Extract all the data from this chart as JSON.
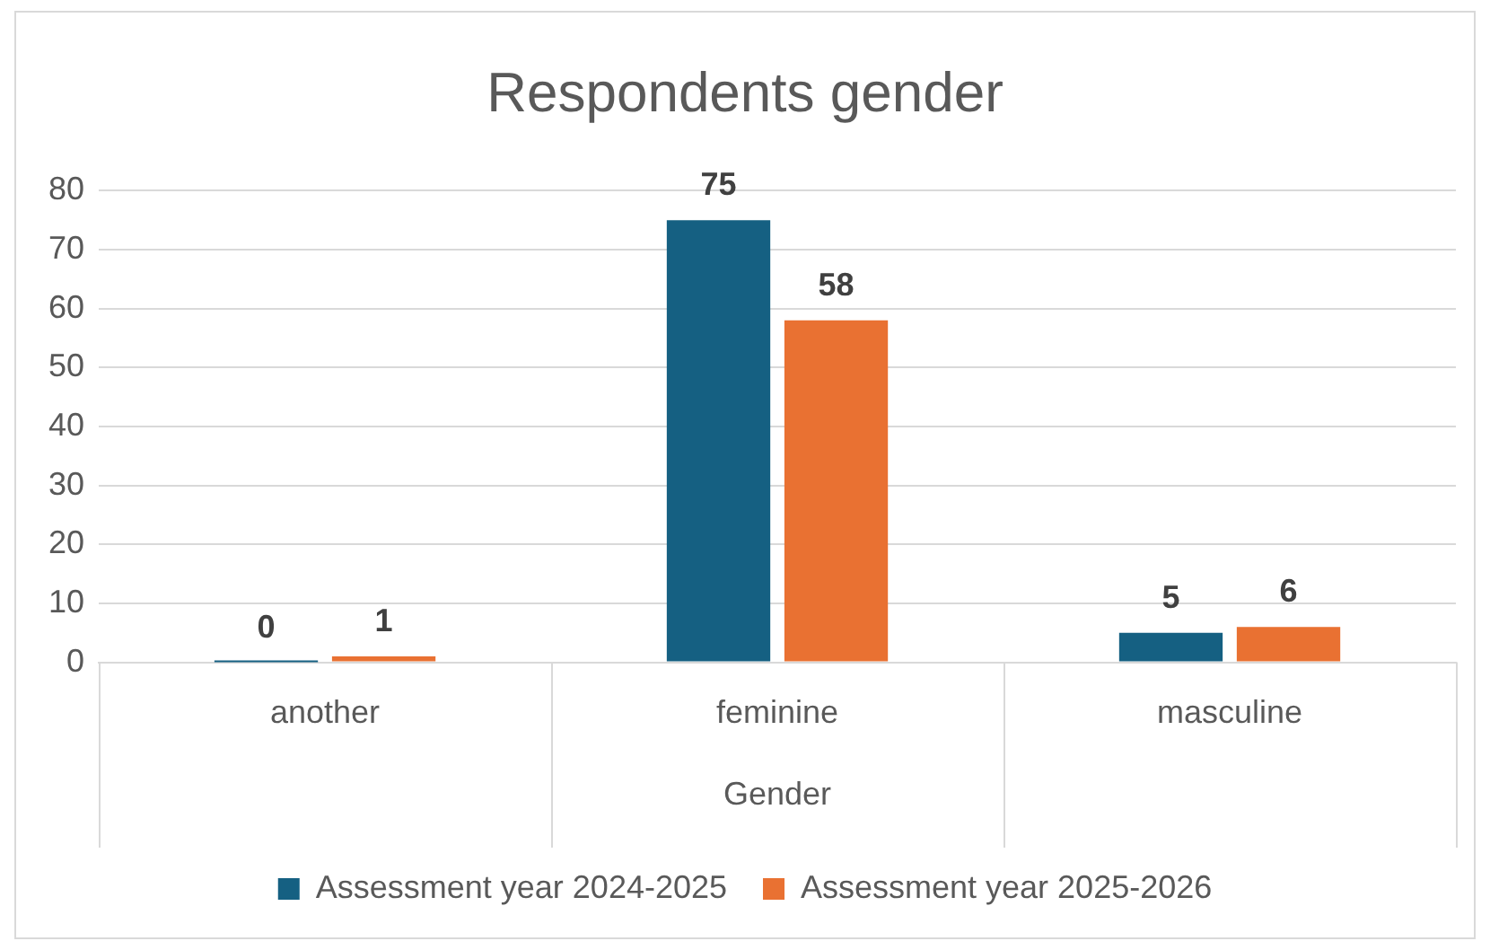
{
  "chart_data": {
    "type": "bar",
    "title": "Respondents gender",
    "xlabel": "Gender",
    "categories": [
      "another",
      "feminine",
      "masculine"
    ],
    "series": [
      {
        "name": "Assessment year 2024-2025",
        "color": "#156082",
        "values": [
          0,
          75,
          5
        ]
      },
      {
        "name": "Assessment year 2025-2026",
        "color": "#e97132",
        "values": [
          1,
          58,
          6
        ]
      }
    ],
    "ylim": [
      0,
      80
    ],
    "yticks": [
      0,
      10,
      20,
      30,
      40,
      50,
      60,
      70,
      80
    ],
    "grid": "y",
    "legend": "bottom",
    "data_labels": true
  }
}
